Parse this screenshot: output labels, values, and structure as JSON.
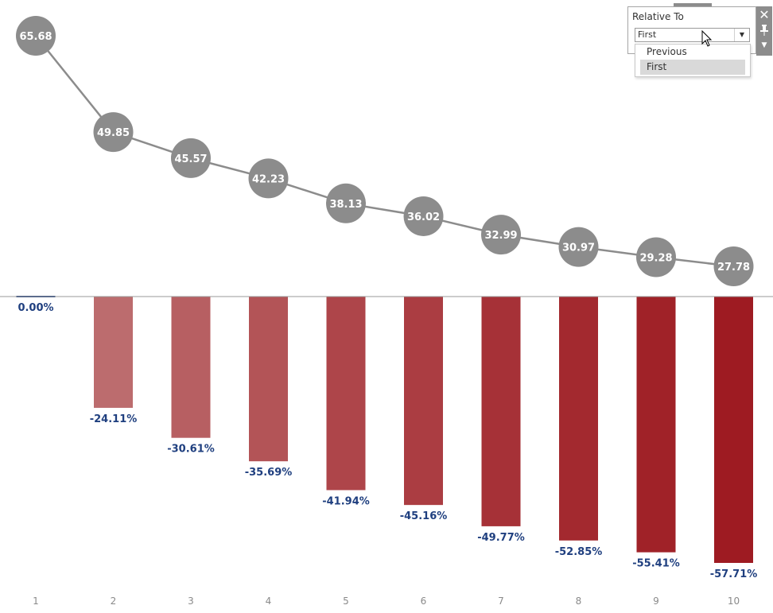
{
  "chart_data": [
    {
      "type": "line",
      "x": [
        1,
        2,
        3,
        4,
        5,
        6,
        7,
        8,
        9,
        10
      ],
      "values": [
        65.68,
        49.85,
        45.57,
        42.23,
        38.13,
        36.02,
        32.99,
        30.97,
        29.28,
        27.78
      ],
      "labels": [
        "65.68",
        "49.85",
        "45.57",
        "42.23",
        "38.13",
        "36.02",
        "32.99",
        "30.97",
        "29.28",
        "27.78"
      ],
      "marker": "circle",
      "color": "#8c8c8c",
      "ylim": [
        25,
        68
      ]
    },
    {
      "type": "bar",
      "categories": [
        "1",
        "2",
        "3",
        "4",
        "5",
        "6",
        "7",
        "8",
        "9",
        "10"
      ],
      "values": [
        0.0,
        -24.11,
        -30.61,
        -35.69,
        -41.94,
        -45.16,
        -49.77,
        -52.85,
        -55.41,
        -57.71
      ],
      "labels": [
        "0.00%",
        "-24.11%",
        "-30.61%",
        "-35.69%",
        "-41.94%",
        "-45.16%",
        "-49.77%",
        "-52.85%",
        "-55.41%",
        "-57.71%"
      ],
      "ylim": [
        -59,
        0
      ],
      "color_light": "#c78a8a",
      "color_dark": "#9e1b22",
      "label_color": "#1f3f7f"
    }
  ],
  "parameter_control": {
    "title": "Relative To",
    "selected_value": "First",
    "options": [
      "Previous",
      "First"
    ],
    "highlighted_option": "First"
  },
  "icons": {
    "close": "close-icon",
    "pin": "pin-icon",
    "menu": "menu-caret-icon",
    "select_arrow": "chevron-down-icon",
    "cursor": "mouse-pointer-icon"
  }
}
